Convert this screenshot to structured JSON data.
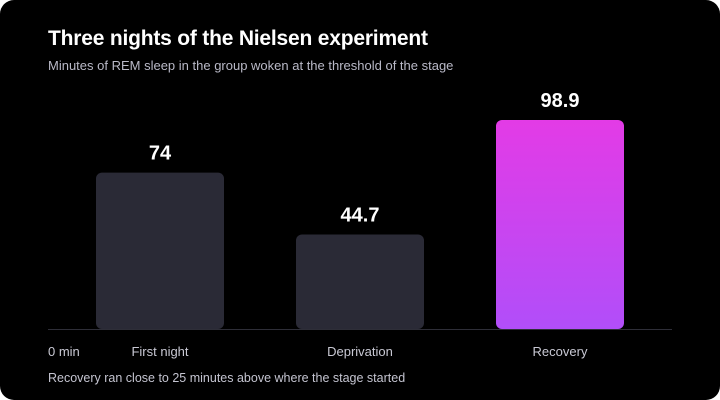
{
  "card": {
    "title": "Three nights of the Nielsen experiment",
    "subtitle": "Minutes of REM sleep in the group woken at the threshold of the stage",
    "footnote": "Recovery ran close to 25 minutes above where the stage started"
  },
  "colors": {
    "background": "#000000",
    "bar_default": "#2a2a36",
    "bar_highlight_top": "#e33be6",
    "bar_highlight_bottom": "#b14ef9",
    "baseline": "#2e2e38"
  },
  "chart_data": {
    "type": "bar",
    "title": "Three nights of the Nielsen experiment",
    "subtitle": "Minutes of REM sleep in the group woken at the threshold of the stage",
    "xlabel": "",
    "ylabel": "",
    "y_min_label": "0 min",
    "categories": [
      "First night",
      "Deprivation",
      "Recovery"
    ],
    "values": [
      74,
      44.7,
      98.9
    ],
    "value_labels": [
      "74",
      "44.7",
      "98.9"
    ],
    "highlight_index": 2,
    "ylim": [
      0,
      98.9
    ],
    "grid": false,
    "legend": "none"
  }
}
